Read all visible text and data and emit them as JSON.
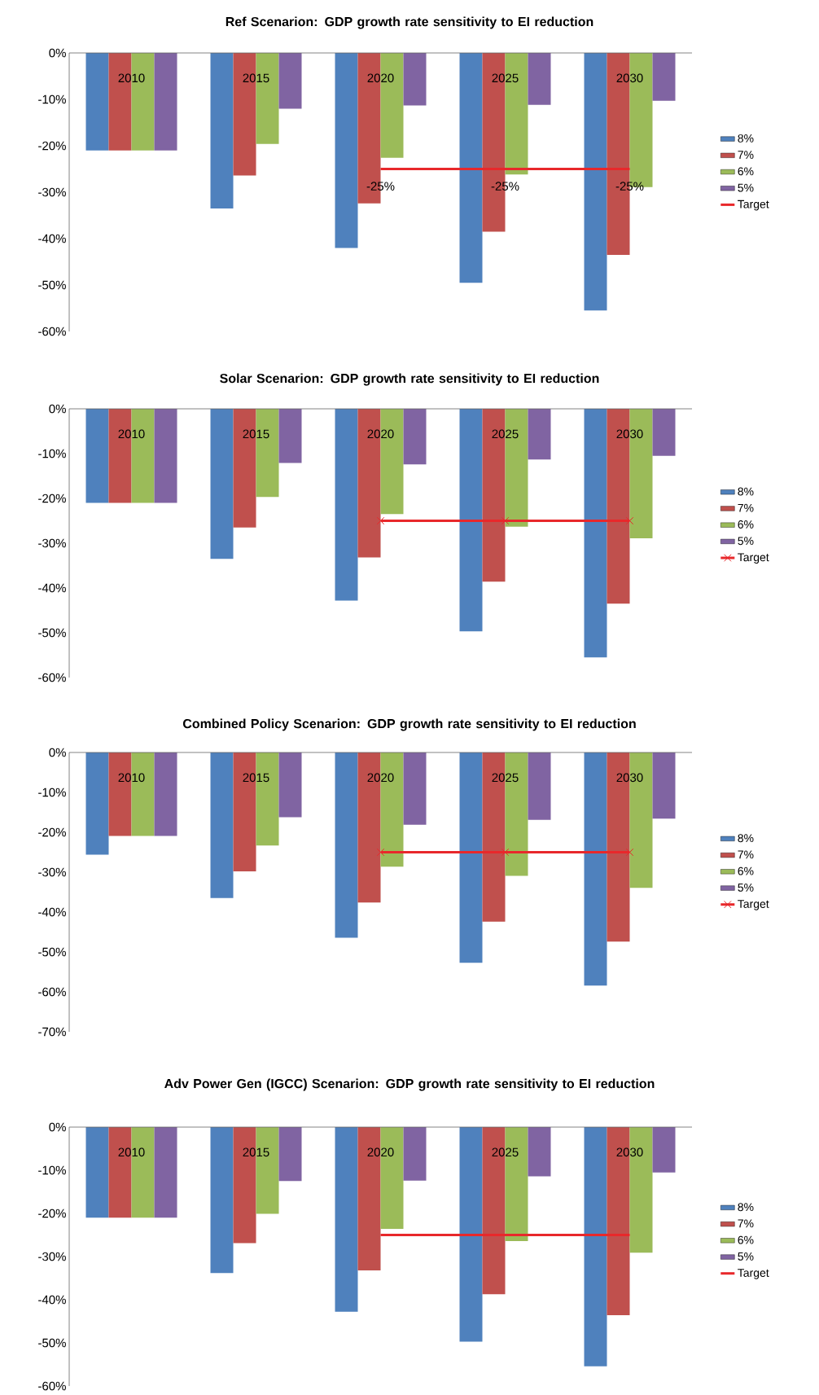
{
  "chart_data": [
    {
      "type": "bar",
      "title": "Ref Scenarion: GDP growth rate sensitivity to EI reduction",
      "categories": [
        "2010",
        "2015",
        "2020",
        "2025",
        "2030"
      ],
      "ylim": [
        -60,
        0
      ],
      "yticks": [
        {
          "value": -60,
          "label": "-60%"
        },
        {
          "value": -50,
          "label": "-50%"
        },
        {
          "value": -40,
          "label": "-40%"
        },
        {
          "value": -30,
          "label": "-30%"
        },
        {
          "value": -20,
          "label": "-20%"
        },
        {
          "value": -10,
          "label": "-10%"
        },
        {
          "value": 0,
          "label": "0%"
        }
      ],
      "legend": "right",
      "series": [
        {
          "name": "8%",
          "color": "#4f81bd",
          "values": [
            -21,
            -33.5,
            -42,
            -49.5,
            -55.5
          ]
        },
        {
          "name": "7%",
          "color": "#c0504d",
          "values": [
            -21,
            -26.4,
            -32.4,
            -38.5,
            -43.5
          ]
        },
        {
          "name": "6%",
          "color": "#9bbb59",
          "values": [
            -21,
            -19.6,
            -22.6,
            -26.2,
            -28.9
          ]
        },
        {
          "name": "5%",
          "color": "#8064a2",
          "values": [
            -21,
            -12,
            -11.3,
            -11.2,
            -10.3
          ]
        },
        {
          "name": "Target",
          "type": "line",
          "color": "#e8282b",
          "values": [
            null,
            null,
            -25,
            -25,
            -25
          ],
          "value_labels": [
            null,
            null,
            "-25%",
            "-25%",
            "-25%"
          ]
        }
      ]
    },
    {
      "type": "bar",
      "title": "Solar Scenarion: GDP growth rate sensitivity to EI reduction",
      "categories": [
        "2010",
        "2015",
        "2020",
        "2025",
        "2030"
      ],
      "ylim": [
        -60,
        0
      ],
      "yticks": [
        {
          "value": -60,
          "label": "-60%"
        },
        {
          "value": -50,
          "label": "-50%"
        },
        {
          "value": -40,
          "label": "-40%"
        },
        {
          "value": -30,
          "label": "-30%"
        },
        {
          "value": -20,
          "label": "-20%"
        },
        {
          "value": -10,
          "label": "-10%"
        },
        {
          "value": 0,
          "label": "0%"
        }
      ],
      "legend": "right",
      "series": [
        {
          "name": "8%",
          "color": "#4f81bd",
          "values": [
            -21,
            -33.5,
            -42.8,
            -49.7,
            -55.5
          ]
        },
        {
          "name": "7%",
          "color": "#c0504d",
          "values": [
            -21,
            -26.5,
            -33.2,
            -38.6,
            -43.5
          ]
        },
        {
          "name": "6%",
          "color": "#9bbb59",
          "values": [
            -21,
            -19.7,
            -23.5,
            -26.3,
            -28.9
          ]
        },
        {
          "name": "5%",
          "color": "#8064a2",
          "values": [
            -21,
            -12.1,
            -12.4,
            -11.3,
            -10.5
          ]
        },
        {
          "name": "Target",
          "type": "line",
          "color": "#e8282b",
          "marker": "cross",
          "values": [
            null,
            null,
            -25,
            -25,
            -25
          ]
        }
      ]
    },
    {
      "type": "bar",
      "title": "Combined Policy Scenarion: GDP growth rate sensitivity to EI reduction",
      "categories": [
        "2010",
        "2015",
        "2020",
        "2025",
        "2030"
      ],
      "ylim": [
        -70,
        0
      ],
      "yticks": [
        {
          "value": -70,
          "label": "-70%"
        },
        {
          "value": -60,
          "label": "-60%"
        },
        {
          "value": -50,
          "label": "-50%"
        },
        {
          "value": -40,
          "label": "-40%"
        },
        {
          "value": -30,
          "label": "-30%"
        },
        {
          "value": -20,
          "label": "-20%"
        },
        {
          "value": -10,
          "label": "-10%"
        },
        {
          "value": 0,
          "label": "0%"
        }
      ],
      "legend": "right",
      "series": [
        {
          "name": "8%",
          "color": "#4f81bd",
          "values": [
            -25.6,
            -36.5,
            -46.4,
            -52.7,
            -58.4
          ]
        },
        {
          "name": "7%",
          "color": "#c0504d",
          "values": [
            -20.9,
            -29.8,
            -37.6,
            -42.4,
            -47.4
          ]
        },
        {
          "name": "6%",
          "color": "#9bbb59",
          "values": [
            -20.9,
            -23.3,
            -28.6,
            -30.9,
            -33.9
          ]
        },
        {
          "name": "5%",
          "color": "#8064a2",
          "values": [
            -20.9,
            -16.2,
            -18.1,
            -16.9,
            -16.6
          ]
        },
        {
          "name": "Target",
          "type": "line",
          "color": "#e8282b",
          "marker": "cross",
          "values": [
            null,
            null,
            -25,
            -25,
            -25
          ]
        }
      ]
    },
    {
      "type": "bar",
      "title": "Adv Power  Gen (IGCC) Scenarion: GDP growth rate sensitivity to EI reduction",
      "categories": [
        "2010",
        "2015",
        "2020",
        "2025",
        "2030"
      ],
      "ylim": [
        -60,
        0
      ],
      "yticks": [
        {
          "value": -60,
          "label": "-60%"
        },
        {
          "value": -50,
          "label": "-50%"
        },
        {
          "value": -40,
          "label": "-40%"
        },
        {
          "value": -30,
          "label": "-30%"
        },
        {
          "value": -20,
          "label": "-20%"
        },
        {
          "value": -10,
          "label": "-10%"
        },
        {
          "value": 0,
          "label": "0%"
        }
      ],
      "legend": "right",
      "series": [
        {
          "name": "8%",
          "color": "#4f81bd",
          "values": [
            -21,
            -33.8,
            -42.8,
            -49.7,
            -55.4
          ]
        },
        {
          "name": "7%",
          "color": "#c0504d",
          "values": [
            -21,
            -26.9,
            -33.2,
            -38.7,
            -43.6
          ]
        },
        {
          "name": "6%",
          "color": "#9bbb59",
          "values": [
            -21,
            -20.1,
            -23.6,
            -26.4,
            -29.1
          ]
        },
        {
          "name": "5%",
          "color": "#8064a2",
          "values": [
            -21,
            -12.5,
            -12.4,
            -11.4,
            -10.5
          ]
        },
        {
          "name": "Target",
          "type": "line",
          "color": "#e8282b",
          "values": [
            null,
            null,
            -25,
            -25,
            -25
          ]
        }
      ]
    }
  ]
}
